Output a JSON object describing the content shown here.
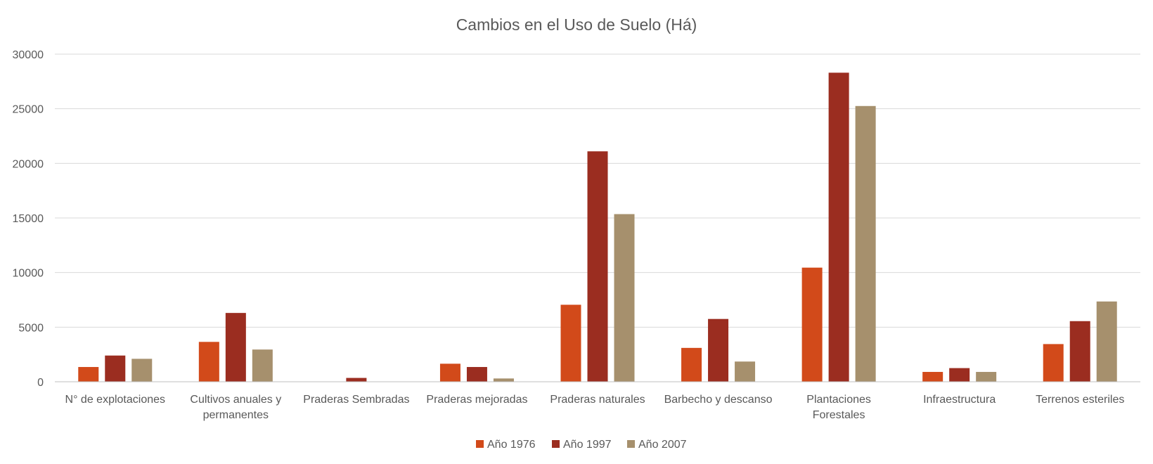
{
  "chart_data": {
    "type": "bar",
    "title": "Cambios en el Uso de Suelo (Há)",
    "xlabel": "",
    "ylabel": "",
    "ylim": [
      0,
      30000
    ],
    "yticks": [
      0,
      5000,
      10000,
      15000,
      20000,
      25000,
      30000
    ],
    "grid": true,
    "legend_position": "bottom",
    "categories": [
      [
        "N° de explotaciones"
      ],
      [
        "Cultivos anuales y",
        "permanentes"
      ],
      [
        "Praderas Sembradas"
      ],
      [
        "Praderas mejoradas"
      ],
      [
        "Praderas naturales"
      ],
      [
        "Barbecho y descanso"
      ],
      [
        "Plantaciones",
        "Forestales"
      ],
      [
        "Infraestructura"
      ],
      [
        "Terrenos esteriles"
      ]
    ],
    "series": [
      {
        "name": "Año 1976",
        "color": "#d24a1a",
        "values": [
          1350,
          3650,
          0,
          1650,
          7050,
          3100,
          10450,
          900,
          3450
        ]
      },
      {
        "name": "Año 1997",
        "color": "#9b2d20",
        "values": [
          2400,
          6300,
          350,
          1350,
          21100,
          5750,
          28300,
          1250,
          5550
        ]
      },
      {
        "name": "Año 2007",
        "color": "#a6906d",
        "values": [
          2100,
          2950,
          0,
          300,
          15350,
          1850,
          25250,
          900,
          7350
        ]
      }
    ]
  }
}
